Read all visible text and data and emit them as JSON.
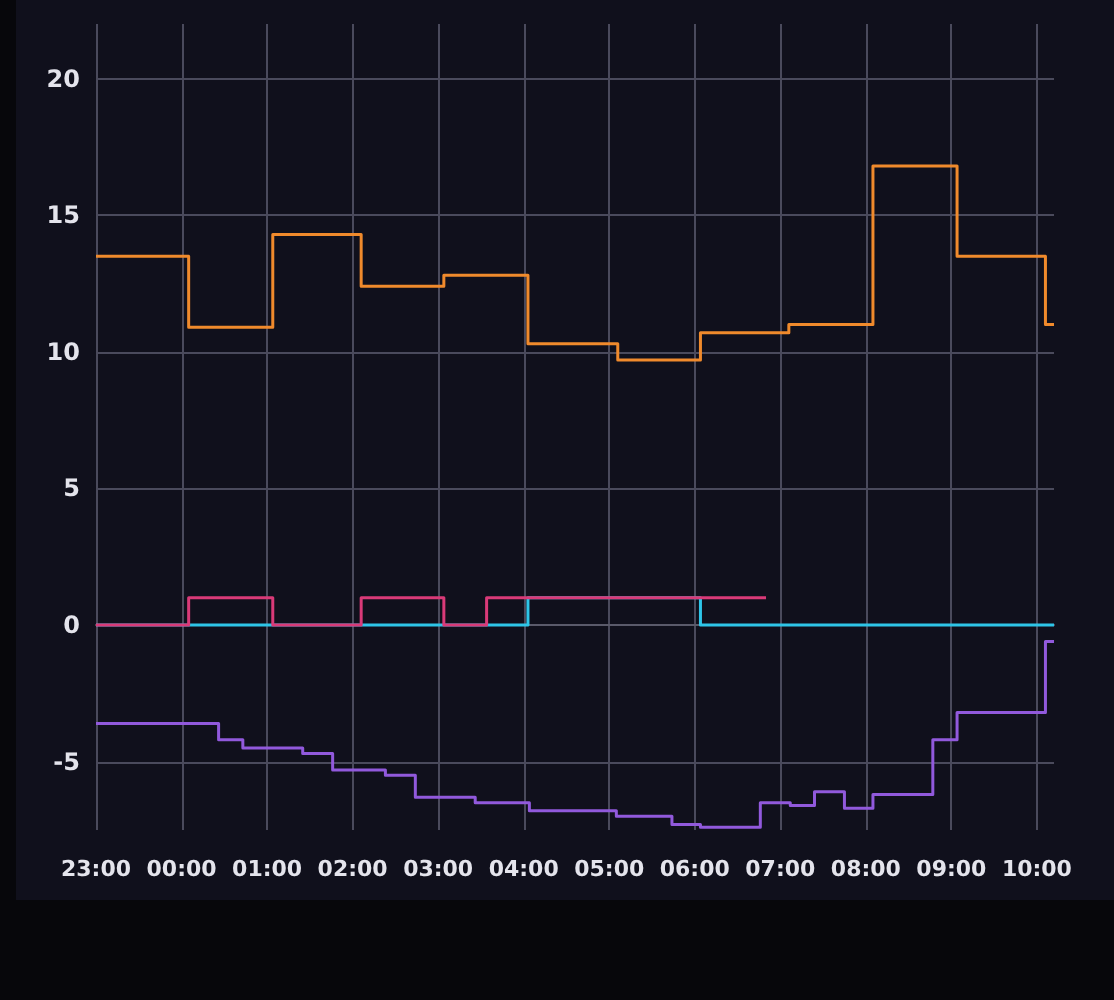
{
  "chart_data": {
    "type": "step",
    "marker": "none",
    "grid": true,
    "xlim": [
      "--01-01T23:00",
      "--01-02T10:12"
    ],
    "ylim": [
      -7.5,
      22
    ],
    "xticks": [
      {
        "value": "--01-01T23:00",
        "label": "23:00"
      },
      {
        "value": "--01-02T00:00",
        "label": "00:00"
      },
      {
        "value": "--01-02T01:00",
        "label": "01:00"
      },
      {
        "value": "--01-02T02:00",
        "label": "02:00"
      },
      {
        "value": "--01-02T03:00",
        "label": "03:00"
      },
      {
        "value": "--01-02T04:00",
        "label": "04:00"
      },
      {
        "value": "--01-02T05:00",
        "label": "05:00"
      },
      {
        "value": "--01-02T06:00",
        "label": "06:00"
      },
      {
        "value": "--01-02T07:00",
        "label": "07:00"
      },
      {
        "value": "--01-02T08:00",
        "label": "08:00"
      },
      {
        "value": "--01-02T09:00",
        "label": "09:00"
      },
      {
        "value": "--01-02T10:00",
        "label": "10:00"
      }
    ],
    "yticks": [
      -5,
      0,
      5,
      10,
      15,
      20
    ],
    "series": [
      {
        "color": "#f08a2c",
        "x": [
          "--01-01T23:00",
          "--01-02T00:05",
          "--01-02T01:04",
          "--01-02T02:06",
          "--01-02T03:04",
          "--01-02T04:03",
          "--01-02T05:06",
          "--01-02T06:04",
          "--01-02T07:06",
          "--01-02T08:05",
          "--01-02T09:04",
          "--01-02T10:06",
          "--01-02T10:12"
        ],
        "values": [
          13.5,
          10.9,
          14.3,
          12.4,
          12.8,
          10.3,
          9.7,
          10.7,
          11.0,
          16.8,
          13.5,
          11.0,
          11.0
        ]
      },
      {
        "color": "#2ec5e8",
        "x": [
          "--01-01T23:00",
          "--01-02T04:03",
          "--01-02T06:04",
          "--01-02T10:12"
        ],
        "values": [
          0,
          1,
          0,
          0
        ]
      },
      {
        "color": "#d93a78",
        "x": [
          "--01-01T23:00",
          "--01-02T00:05",
          "--01-02T01:04",
          "--01-02T02:06",
          "--01-02T03:04",
          "--01-02T03:34",
          "--01-02T06:50"
        ],
        "values": [
          0,
          1,
          0,
          1,
          0,
          1,
          1
        ]
      },
      {
        "color": "#9159dc",
        "x": [
          "--01-01T23:00",
          "--01-02T00:26",
          "--01-02T00:43",
          "--01-02T01:25",
          "--01-02T01:46",
          "--01-02T02:23",
          "--01-02T02:44",
          "--01-02T03:26",
          "--01-02T04:04",
          "--01-02T05:05",
          "--01-02T05:44",
          "--01-02T06:04",
          "--01-02T06:46",
          "--01-02T07:07",
          "--01-02T07:24",
          "--01-02T07:45",
          "--01-02T08:05",
          "--01-02T08:47",
          "--01-02T09:04",
          "--01-02T10:06",
          "--01-02T10:12"
        ],
        "values": [
          -3.6,
          -4.2,
          -4.5,
          -4.7,
          -5.3,
          -5.5,
          -6.3,
          -6.5,
          -6.8,
          -7.0,
          -7.3,
          -7.4,
          -6.5,
          -6.6,
          -6.1,
          -6.7,
          -6.2,
          -4.2,
          -3.2,
          -0.6,
          -0.6
        ]
      }
    ]
  }
}
